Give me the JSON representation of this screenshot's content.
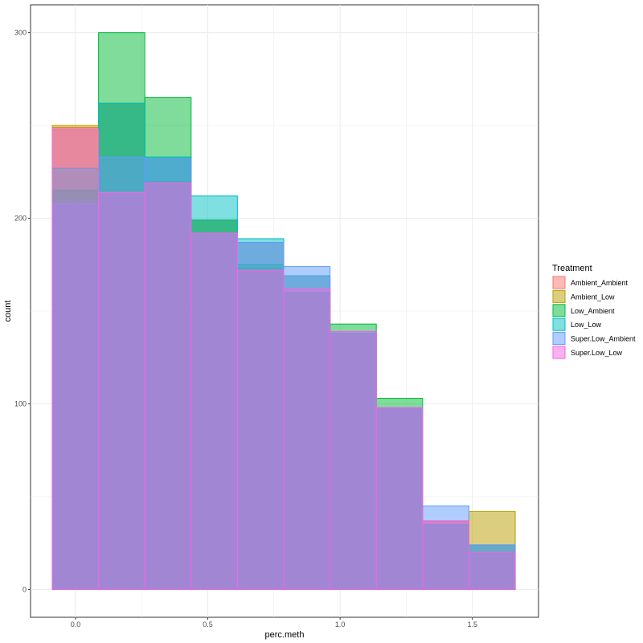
{
  "chart_data": {
    "type": "bar",
    "subtype": "overlapping-histogram",
    "title": "",
    "xlabel": "perc.meth",
    "ylabel": "count",
    "xlim": [
      -0.17,
      1.75
    ],
    "ylim": [
      -15,
      315
    ],
    "x_ticks": [
      0.0,
      0.5,
      1.0,
      1.5
    ],
    "x_tick_labels": [
      "0.0",
      "0.5",
      "1.0",
      "1.5"
    ],
    "y_ticks": [
      0,
      100,
      200,
      300
    ],
    "y_tick_labels": [
      "0",
      "100",
      "200",
      "300"
    ],
    "bin_edges": [
      -0.088,
      0.087,
      0.262,
      0.437,
      0.612,
      0.787,
      0.962,
      1.137,
      1.312,
      1.487,
      1.662
    ],
    "legend_title": "Treatment",
    "legend_position": "right",
    "series": [
      {
        "name": "Ambient_Ambient",
        "color": "#F8766D",
        "values": [
          249,
          262,
          233,
          199,
          187,
          169,
          138,
          98,
          37,
          24
        ]
      },
      {
        "name": "Ambient_Low",
        "color": "#B79F00",
        "values": [
          250,
          262,
          220,
          199,
          173,
          160,
          138,
          98,
          37,
          42
        ]
      },
      {
        "name": "Low_Ambient",
        "color": "#00BA38",
        "values": [
          215,
          300,
          265,
          199,
          175,
          160,
          143,
          103,
          35,
          20
        ]
      },
      {
        "name": "Low_Low",
        "color": "#00BFC4",
        "values": [
          227,
          262,
          233,
          212,
          189,
          169,
          138,
          98,
          35,
          24
        ]
      },
      {
        "name": "Super.Low_Ambient",
        "color": "#619CFF",
        "values": [
          208,
          233,
          232,
          192,
          187,
          174,
          139,
          98,
          45,
          24
        ]
      },
      {
        "name": "Super.Low_Low",
        "color": "#F564E3",
        "values": [
          248,
          214,
          219,
          192,
          172,
          162,
          139,
          98,
          37,
          20
        ]
      }
    ]
  }
}
